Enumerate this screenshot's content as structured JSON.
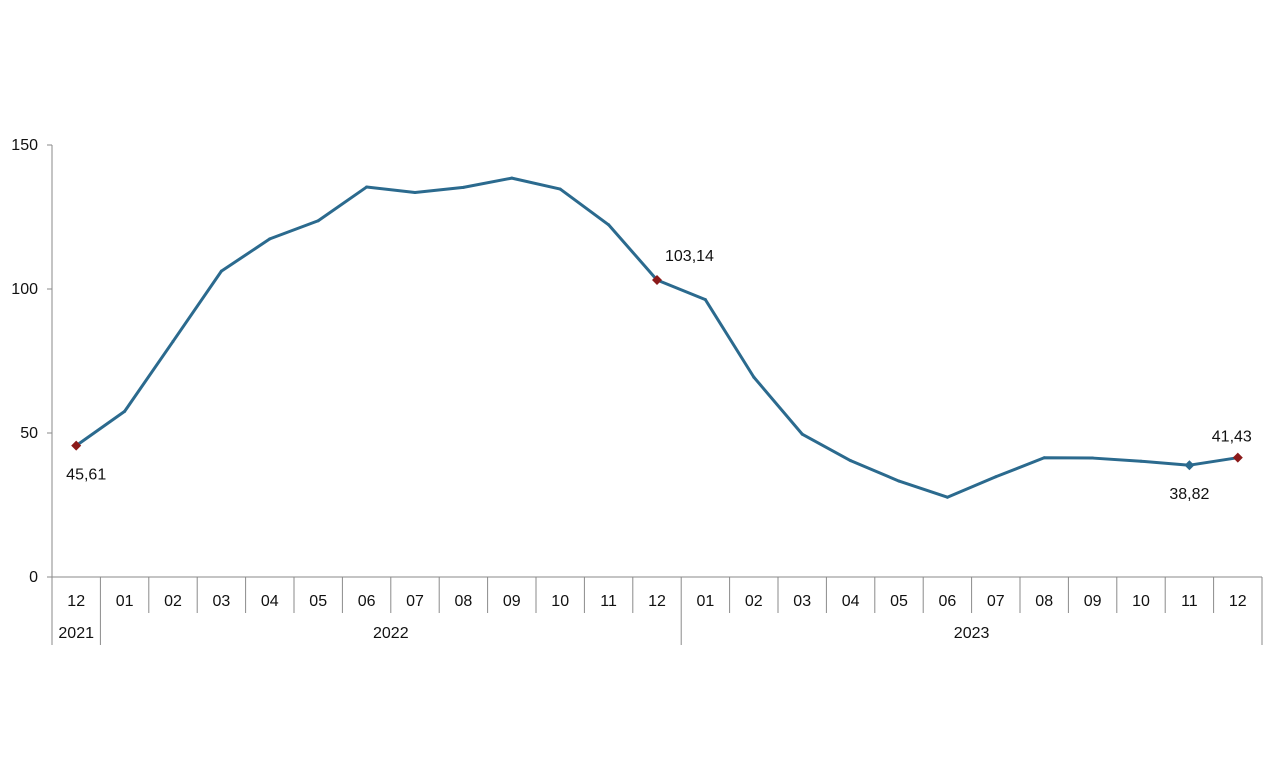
{
  "chart_data": {
    "type": "line",
    "title": "",
    "xlabel": "",
    "ylabel": "",
    "ylim": [
      0,
      150
    ],
    "yticks": [
      0,
      50,
      100,
      150
    ],
    "grid": false,
    "legend": "none",
    "line_color": "#2b6a8e",
    "marker_color": "#8b1a1a",
    "categories": [
      "12",
      "01",
      "02",
      "03",
      "04",
      "05",
      "06",
      "07",
      "08",
      "09",
      "10",
      "11",
      "12",
      "01",
      "02",
      "03",
      "04",
      "05",
      "06",
      "07",
      "08",
      "09",
      "10",
      "11",
      "12"
    ],
    "year_groups": [
      {
        "label": "2021",
        "start": 0,
        "end": 0
      },
      {
        "label": "2022",
        "start": 1,
        "end": 12
      },
      {
        "label": "2023",
        "start": 13,
        "end": 24
      }
    ],
    "series": [
      {
        "values": [
          45.61,
          57.5,
          81.8,
          106.2,
          117.4,
          123.7,
          135.4,
          133.5,
          135.3,
          138.5,
          134.7,
          122.3,
          103.14,
          96.3,
          69.4,
          49.6,
          40.4,
          33.3,
          27.7,
          34.8,
          41.4,
          41.3,
          40.2,
          38.82,
          41.43
        ]
      }
    ],
    "annotations": [
      {
        "index": 0,
        "text": "45,61",
        "marker": "#8b1a1a"
      },
      {
        "index": 12,
        "text": "103,14",
        "marker": "#8b1a1a"
      },
      {
        "index": 23,
        "text": "38,82",
        "marker": "#2b6a8e"
      },
      {
        "index": 24,
        "text": "41,43",
        "marker": "#8b1a1a"
      }
    ]
  }
}
